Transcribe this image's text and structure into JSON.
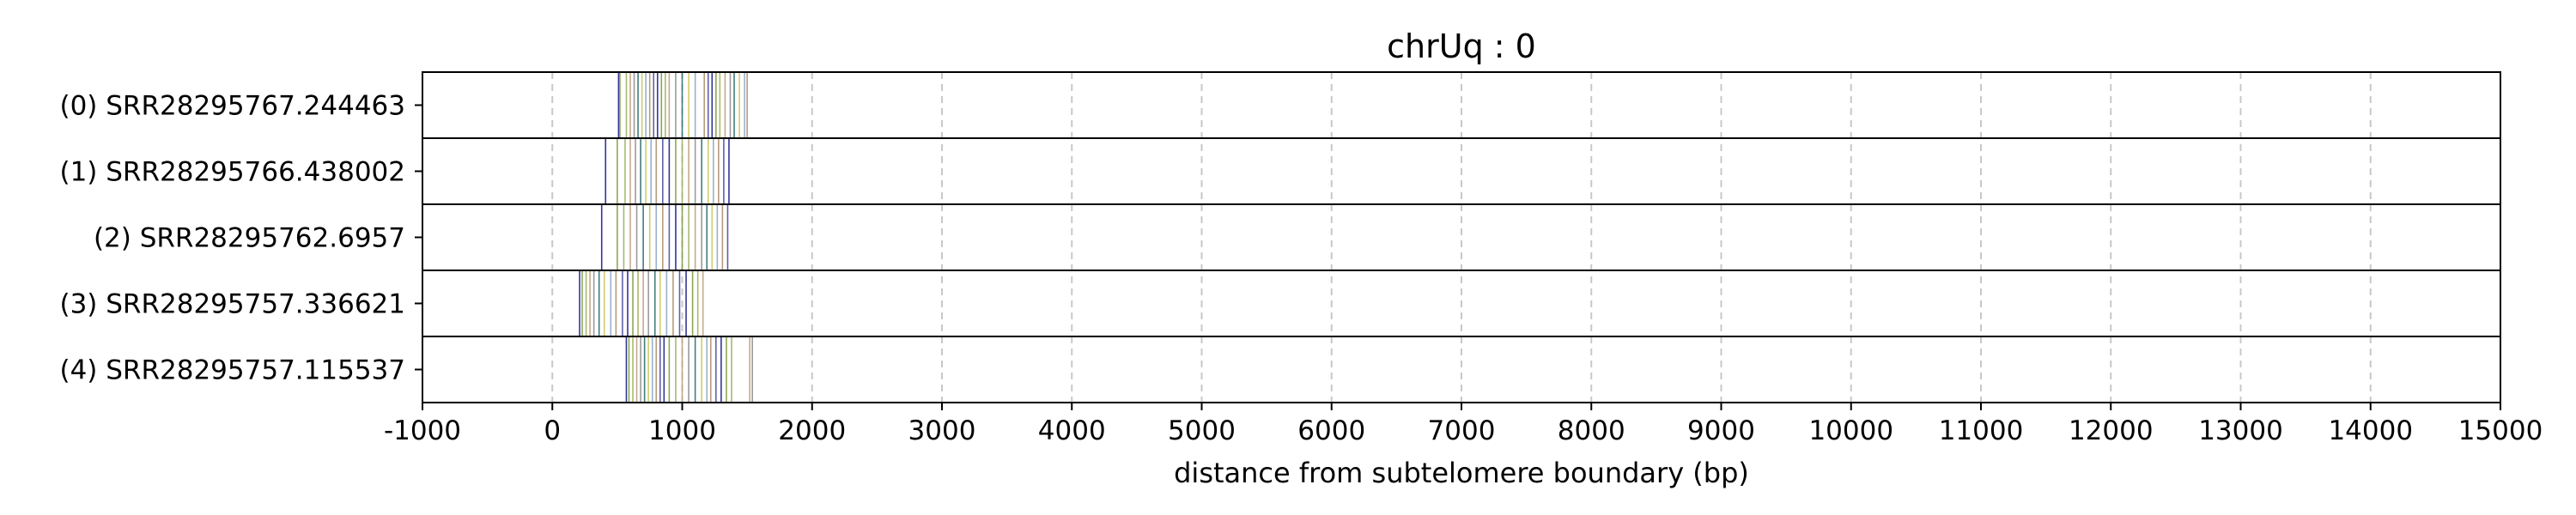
{
  "chart_data": {
    "type": "tick-strip",
    "title": "chrUq : 0",
    "xlabel": "distance from subtelomere boundary (bp)",
    "xlim": [
      -1000,
      15000
    ],
    "x_ticks": [
      -1000,
      0,
      1000,
      2000,
      3000,
      4000,
      5000,
      6000,
      7000,
      8000,
      9000,
      10000,
      11000,
      12000,
      13000,
      14000,
      15000
    ],
    "x_tick_labels": [
      "-1000",
      "0",
      "1000",
      "2000",
      "3000",
      "4000",
      "5000",
      "6000",
      "7000",
      "8000",
      "9000",
      "10000",
      "11000",
      "12000",
      "13000",
      "14000",
      "15000"
    ],
    "grid": "vertical dashed",
    "palette": [
      "#1f1f8f",
      "#7f9f3f",
      "#a0b060",
      "#c0a080",
      "#909090",
      "#2f6f6f",
      "#c8c860",
      "#8fa8c8",
      "#b09070",
      "#4f4fa0"
    ],
    "rows": [
      {
        "label": "(0) SRR28295767.244463",
        "marks": [
          510,
          520,
          570,
          600,
          630,
          660,
          690,
          720,
          750,
          780,
          810,
          840,
          870,
          900,
          950,
          1000,
          1050,
          1100,
          1170,
          1200,
          1230,
          1260,
          1290,
          1330,
          1370,
          1400,
          1440,
          1480,
          1500
        ]
      },
      {
        "label": "(1) SRR28295766.438002",
        "marks": [
          410,
          500,
          560,
          600,
          640,
          680,
          720,
          760,
          800,
          850,
          900,
          950,
          1000,
          1050,
          1100,
          1150,
          1200,
          1240,
          1280,
          1320,
          1360
        ]
      },
      {
        "label": "(2) SRR28295762.6957",
        "marks": [
          380,
          500,
          550,
          600,
          650,
          700,
          750,
          800,
          850,
          900,
          950,
          1000,
          1050,
          1100,
          1150,
          1190,
          1230,
          1270,
          1310,
          1350
        ]
      },
      {
        "label": "(3) SRR28295757.336621",
        "marks": [
          210,
          230,
          260,
          290,
          320,
          360,
          400,
          450,
          490,
          540,
          580,
          620,
          660,
          700,
          740,
          790,
          830,
          880,
          930,
          980,
          1030,
          1080,
          1120,
          1160
        ]
      },
      {
        "label": "(4) SRR28295757.115537",
        "marks": [
          570,
          590,
          620,
          650,
          680,
          710,
          740,
          770,
          800,
          830,
          860,
          900,
          950,
          1000,
          1050,
          1100,
          1150,
          1190,
          1220,
          1260,
          1300,
          1340,
          1380,
          1520,
          1540
        ]
      }
    ]
  }
}
